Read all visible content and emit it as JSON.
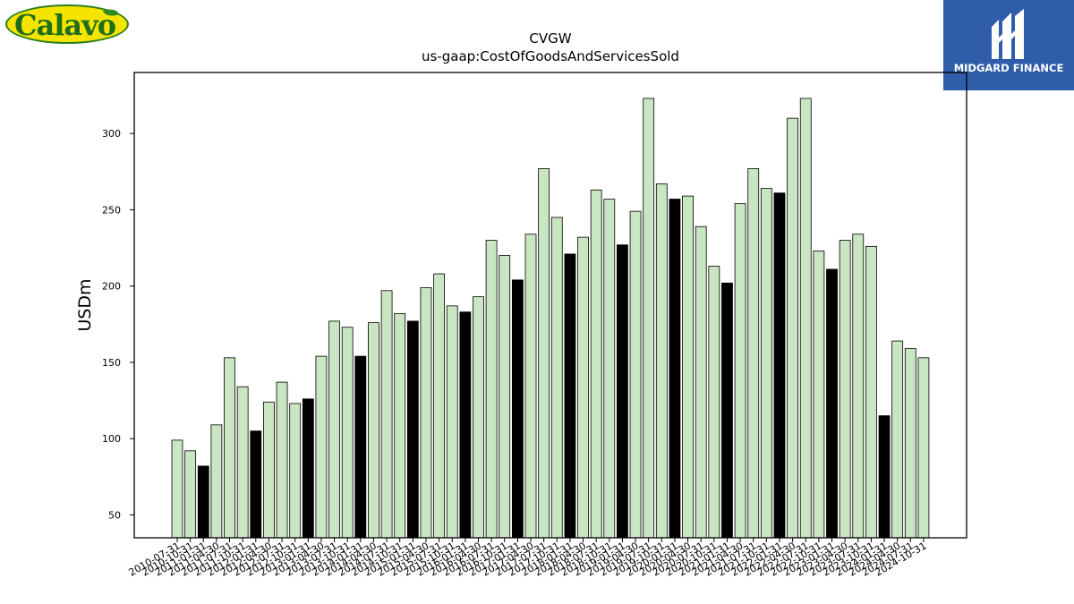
{
  "logos": {
    "left_brand": "Calavo",
    "right_brand": "MIDGARD FINANCE"
  },
  "colors": {
    "bar_light": "#c9e5c1",
    "bar_dark": "#000000",
    "bar_edge": "#000000",
    "midgard_bg": "#2f5daa",
    "calavo_yellow": "#f5e400",
    "calavo_green": "#1f6e1a"
  },
  "chart_data": {
    "type": "bar",
    "title": "CVGW",
    "subtitle": "us-gaap:CostOfGoodsAndServicesSold",
    "xlabel": "",
    "ylabel": "USDm",
    "ylim": [
      35,
      340
    ],
    "yticks": [
      50,
      100,
      150,
      200,
      250,
      300
    ],
    "grid": false,
    "categories": [
      "2010-07-31",
      "2010-10-31",
      "2011-01-31",
      "2011-04-30",
      "2011-07-31",
      "2011-10-31",
      "2012-01-31",
      "2012-04-30",
      "2012-07-31",
      "2012-10-31",
      "2013-01-31",
      "2013-04-30",
      "2013-07-31",
      "2013-10-31",
      "2014-01-31",
      "2014-04-30",
      "2014-07-31",
      "2014-10-31",
      "2015-01-31",
      "2015-04-30",
      "2015-07-31",
      "2015-10-31",
      "2016-01-31",
      "2016-04-30",
      "2016-07-31",
      "2016-10-31",
      "2017-01-31",
      "2017-04-30",
      "2017-07-31",
      "2017-10-31",
      "2018-01-31",
      "2018-04-30",
      "2018-07-31",
      "2018-10-31",
      "2019-01-31",
      "2019-04-30",
      "2019-07-31",
      "2019-10-31",
      "2020-01-31",
      "2020-04-30",
      "2020-07-31",
      "2020-10-31",
      "2021-01-31",
      "2021-04-30",
      "2021-07-31",
      "2021-10-31",
      "2022-01-31",
      "2022-04-30",
      "2022-07-31",
      "2022-10-31",
      "2023-01-31",
      "2023-04-30",
      "2023-07-31",
      "2023-10-31",
      "2024-01-31",
      "2024-04-30",
      "2024-07-31",
      "2024-10-31"
    ],
    "values": [
      99,
      92,
      82,
      109,
      153,
      134,
      105,
      124,
      137,
      123,
      126,
      154,
      177,
      173,
      154,
      176,
      197,
      182,
      177,
      199,
      208,
      187,
      183,
      193,
      230,
      220,
      204,
      234,
      277,
      245,
      221,
      232,
      263,
      257,
      227,
      249,
      323,
      267,
      257,
      259,
      239,
      213,
      202,
      254,
      277,
      264,
      261,
      310,
      323,
      223,
      211,
      230,
      234,
      226,
      115,
      164,
      159,
      153
    ],
    "highlighted": [
      false,
      false,
      true,
      false,
      false,
      false,
      true,
      false,
      false,
      false,
      true,
      false,
      false,
      false,
      true,
      false,
      false,
      false,
      true,
      false,
      false,
      false,
      true,
      false,
      false,
      false,
      true,
      false,
      false,
      false,
      true,
      false,
      false,
      false,
      true,
      false,
      false,
      false,
      true,
      false,
      false,
      false,
      true,
      false,
      false,
      false,
      true,
      false,
      false,
      false,
      true,
      false,
      false,
      false,
      true,
      false,
      false,
      false
    ]
  }
}
